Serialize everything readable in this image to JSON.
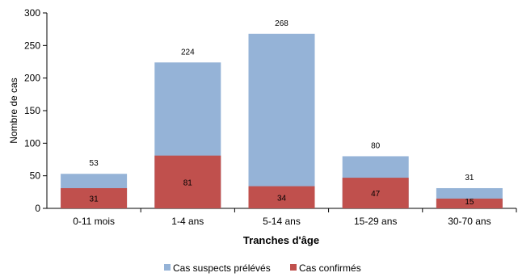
{
  "chart_data": {
    "type": "bar",
    "stacking": "overlapped",
    "categories": [
      "0-11 mois",
      "1-4 ans",
      "5-14 ans",
      "15-29 ans",
      "30-70 ans"
    ],
    "series": [
      {
        "name": "Cas suspects prélévés",
        "values": [
          53,
          224,
          268,
          80,
          31
        ],
        "color": "#95b3d7"
      },
      {
        "name": "Cas confirmés",
        "values": [
          31,
          81,
          34,
          47,
          15
        ],
        "color": "#c0504d"
      }
    ],
    "xlabel": "Tranches d'âge",
    "ylabel": "Nombre de cas",
    "ylim": [
      0,
      300
    ],
    "yticks": [
      0,
      50,
      100,
      150,
      200,
      250,
      300
    ],
    "grid": false,
    "legend": "bottom"
  }
}
